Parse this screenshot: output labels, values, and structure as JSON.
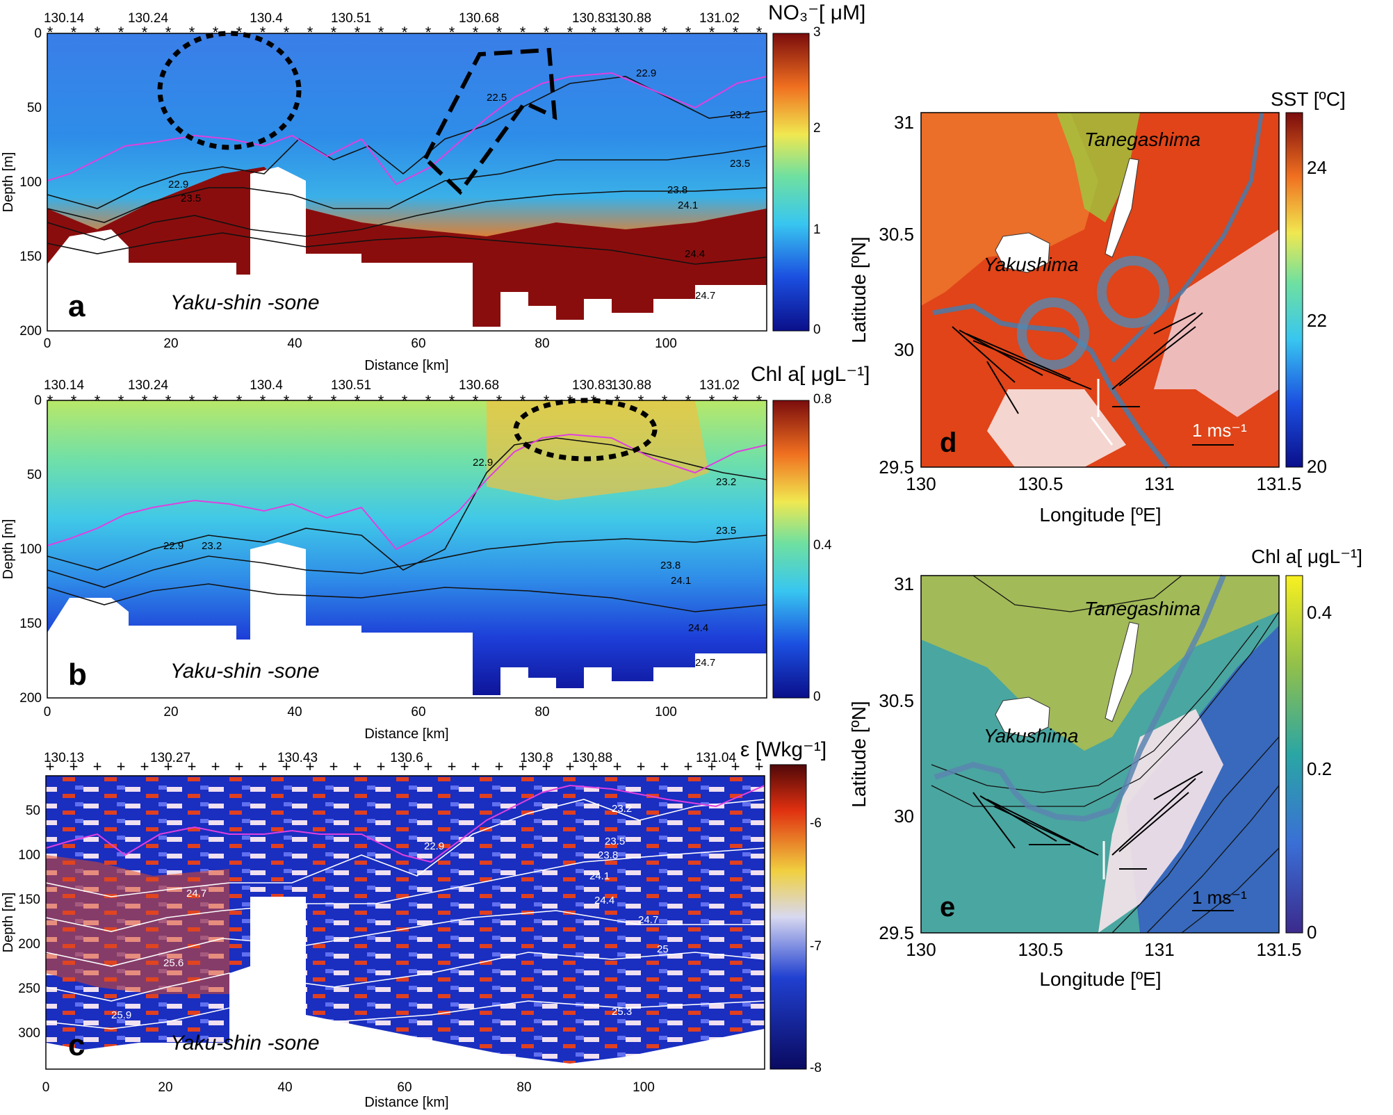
{
  "sections": {
    "a": {
      "letter": "a",
      "cbar_label": "NO₃⁻[ μM]",
      "cbar_ticks": [
        "3",
        "2",
        "1",
        "0"
      ],
      "top_ticks": [
        "130.14",
        "130.24",
        "130.4",
        "130.51",
        "130.68",
        "130.83",
        "130.88",
        "131.02"
      ],
      "x_ticks": [
        "0",
        "20",
        "40",
        "60",
        "80",
        "100"
      ],
      "y_ticks": [
        "0",
        "50",
        "100",
        "150",
        "200"
      ],
      "xlabel": "Distance [km]",
      "ylabel": "Depth [m]",
      "seamount": "Yaku-shin -sone",
      "contours": [
        "22.9",
        "22.9",
        "23.2",
        "23.5",
        "23.8",
        "24.1",
        "24.4",
        "24.7",
        "23.2",
        "23.5",
        "23.8",
        "24.1",
        "24.4",
        "24.7",
        "22.5",
        "23.2",
        "23.5",
        "23.8",
        "24.1",
        "24.4",
        "24.7"
      ]
    },
    "b": {
      "letter": "b",
      "cbar_label": "Chl a[ μgL⁻¹]",
      "cbar_ticks": [
        "0.8",
        "0.4",
        "0"
      ],
      "top_ticks": [
        "130.14",
        "130.24",
        "130.4",
        "130.51",
        "130.68",
        "130.83",
        "130.88",
        "131.02"
      ],
      "x_ticks": [
        "0",
        "20",
        "40",
        "60",
        "80",
        "100"
      ],
      "y_ticks": [
        "0",
        "50",
        "100",
        "150",
        "200"
      ],
      "xlabel": "Distance [km]",
      "ylabel": "Depth [m]",
      "seamount": "Yaku-shin -sone",
      "contours": [
        "22.9",
        "22.9",
        "23.2",
        "23.5",
        "23.8",
        "24.1",
        "24.4",
        "24.7",
        "23.2",
        "23.5",
        "23.8",
        "24.1",
        "24.4",
        "24.7",
        "22.9",
        "23.2",
        "23.5",
        "23.8",
        "24.1",
        "24.4",
        "24.7"
      ]
    },
    "c": {
      "letter": "c",
      "cbar_label": "ε [Wkg⁻¹]",
      "cbar_ticks": [
        "-6",
        "-7",
        "-8"
      ],
      "top_ticks": [
        "130.13",
        "130.27",
        "130.43",
        "130.6",
        "130.8",
        "130.88",
        "131.04"
      ],
      "x_ticks": [
        "0",
        "20",
        "40",
        "60",
        "80",
        "100"
      ],
      "y_ticks": [
        "50",
        "100",
        "150",
        "200",
        "250",
        "300"
      ],
      "xlabel": "Distance [km]",
      "ylabel": "Depth [m]",
      "seamount": "Yaku-shin -sone",
      "contours": [
        "22.9",
        "22.9",
        "23.2",
        "23.5",
        "23.8",
        "24.1",
        "24.4",
        "24.7",
        "24.7",
        "25",
        "25",
        "25.3",
        "25.6",
        "25.9",
        "25.3",
        "25.6"
      ]
    },
    "d": {
      "letter": "d",
      "cbar_label": "SST [ºC]",
      "cbar_ticks": [
        "24",
        "22",
        "20"
      ],
      "x_ticks": [
        "130",
        "130.5",
        "131",
        "131.5"
      ],
      "y_ticks": [
        "31",
        "30.5",
        "30",
        "29.5"
      ],
      "xlabel": "Longitude [ºE]",
      "ylabel": "Latitude [ºN]",
      "island1": "Tanegashima",
      "island2": "Yakushima",
      "scale": "1 ms⁻¹"
    },
    "e": {
      "letter": "e",
      "cbar_label": "Chl a[ μgL⁻¹]",
      "cbar_ticks": [
        "0.4",
        "0.2",
        "0"
      ],
      "x_ticks": [
        "130",
        "130.5",
        "131",
        "131.5"
      ],
      "y_ticks": [
        "31",
        "30.5",
        "30",
        "29.5"
      ],
      "xlabel": "Longitude [ºE]",
      "ylabel": "Latitude [ºN]",
      "island1": "Tanegashima",
      "island2": "Yakushima",
      "scale": "1 ms⁻¹"
    }
  },
  "chart_data": [
    {
      "type": "heatmap",
      "panel": "a",
      "xlabel": "Distance [km]",
      "ylabel": "Depth [m]",
      "xlim": [
        0,
        117
      ],
      "ylim": [
        200,
        0
      ],
      "colorbar_range": [
        0,
        3
      ]
    },
    {
      "type": "heatmap",
      "panel": "b",
      "xlabel": "Distance [km]",
      "ylabel": "Depth [m]",
      "xlim": [
        0,
        117
      ],
      "ylim": [
        200,
        0
      ],
      "colorbar_range": [
        0,
        0.8
      ]
    },
    {
      "type": "heatmap",
      "panel": "c",
      "xlabel": "Distance [km]",
      "ylabel": "Depth [m]",
      "xlim": [
        0,
        120
      ],
      "ylim": [
        340,
        20
      ],
      "colorbar_range": [
        -8,
        -5.5
      ]
    },
    {
      "type": "heatmap",
      "panel": "d",
      "xlabel": "Longitude [ºE]",
      "ylabel": "Latitude [ºN]",
      "xlim": [
        130,
        131.8
      ],
      "ylim": [
        29.5,
        31
      ],
      "colorbar_range": [
        20,
        25
      ]
    },
    {
      "type": "heatmap",
      "panel": "e",
      "xlabel": "Longitude [ºE]",
      "ylabel": "Latitude [ºN]",
      "xlim": [
        130,
        131.8
      ],
      "ylim": [
        29.5,
        31
      ],
      "colorbar_range": [
        0,
        0.45
      ]
    }
  ],
  "colors": {
    "magenta": "#e040e0",
    "contour": "#111111",
    "arrow": "#111111"
  }
}
